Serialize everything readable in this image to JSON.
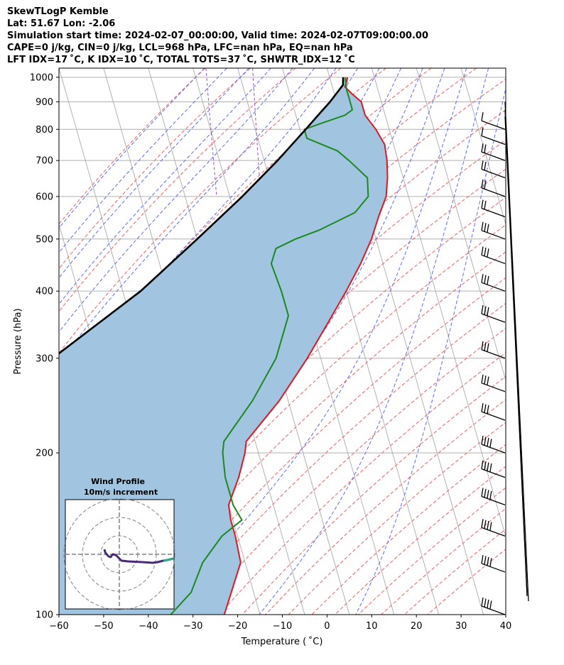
{
  "header": {
    "line1": "SkewTLogP Kemble",
    "line2": "Lat: 51.67   Lon: -2.06",
    "line3": "Simulation start time: 2024-02-07_00:00:00, Valid time: 2024-02-07T09:00:00.00",
    "line4": "CAPE=0 j/kg, CIN=0 j/kg, LCL=968 hPa, LFC=nan hPa, EQ=nan hPa",
    "line5": "LFT IDX=17 ˚C, K IDX=10 ˚C, TOTAL TOTS=37 ˚C, SHWTR_IDX=12 ˚C"
  },
  "chart_data": {
    "type": "line",
    "subtype": "skew-T log-P",
    "xlabel": "Temperature ( ˚C)",
    "ylabel": "Pressure (hPa)",
    "xlim": [
      -60,
      40
    ],
    "ylim": [
      1040,
      100
    ],
    "y_scale": "log",
    "x_ticks": [
      "−60",
      "−50",
      "−40",
      "−30",
      "−20",
      "−10",
      "0",
      "10",
      "20",
      "30",
      "40"
    ],
    "y_ticks": [
      "100",
      "200",
      "300",
      "400",
      "500",
      "600",
      "700",
      "800",
      "900",
      "1000"
    ],
    "grid": true,
    "series": [
      {
        "color": "#e8141a",
        "points": [
          [
            1000,
            4
          ],
          [
            980,
            3.5
          ],
          [
            960,
            2.8
          ],
          [
            930,
            4
          ],
          [
            900,
            5.5
          ],
          [
            850,
            5.5
          ],
          [
            800,
            7
          ],
          [
            750,
            8
          ],
          [
            700,
            7.5
          ],
          [
            650,
            6.5
          ],
          [
            600,
            5
          ],
          [
            550,
            2
          ],
          [
            500,
            -1
          ],
          [
            450,
            -5
          ],
          [
            400,
            -10
          ],
          [
            350,
            -16
          ],
          [
            300,
            -23
          ],
          [
            250,
            -32
          ],
          [
            210,
            -42
          ],
          [
            200,
            -43
          ],
          [
            180,
            -46
          ],
          [
            160,
            -50
          ],
          [
            150,
            -50.5
          ],
          [
            140,
            -50.5
          ],
          [
            125,
            -51
          ],
          [
            110,
            -55
          ],
          [
            100,
            -58
          ]
        ]
      },
      {
        "color": "#1a8a1a",
        "points": [
          [
            1000,
            3.5
          ],
          [
            950,
            3
          ],
          [
            900,
            3
          ],
          [
            870,
            3
          ],
          [
            850,
            1
          ],
          [
            820,
            -5
          ],
          [
            800,
            -9
          ],
          [
            770,
            -9
          ],
          [
            730,
            -3
          ],
          [
            700,
            -1
          ],
          [
            650,
            2
          ],
          [
            600,
            1
          ],
          [
            560,
            -3
          ],
          [
            520,
            -12
          ],
          [
            500,
            -18
          ],
          [
            480,
            -23
          ],
          [
            450,
            -25
          ],
          [
            400,
            -24.5
          ],
          [
            360,
            -24.5
          ],
          [
            300,
            -30
          ],
          [
            250,
            -38
          ],
          [
            210,
            -47
          ],
          [
            200,
            -48
          ],
          [
            180,
            -49
          ],
          [
            160,
            -49
          ],
          [
            150,
            -48
          ],
          [
            140,
            -53.5
          ],
          [
            125,
            -59.5
          ],
          [
            110,
            -64
          ],
          [
            100,
            -70
          ]
        ]
      },
      {
        "color": "#000000",
        "points": [
          [
            1000,
            3
          ],
          [
            968,
            2.5
          ],
          [
            900,
            -1.5
          ],
          [
            850,
            -5
          ],
          [
            800,
            -8.7
          ],
          [
            700,
            -17
          ],
          [
            600,
            -27.2
          ],
          [
            500,
            -40
          ],
          [
            400,
            -56
          ],
          [
            300,
            -80
          ],
          [
            250,
            -97
          ],
          [
            200,
            -120
          ],
          [
            150,
            -150
          ],
          [
            100,
            -195
          ]
        ]
      }
    ],
    "inset": {
      "title": "Wind Profile",
      "subtitle": "10m/s increment"
    }
  }
}
